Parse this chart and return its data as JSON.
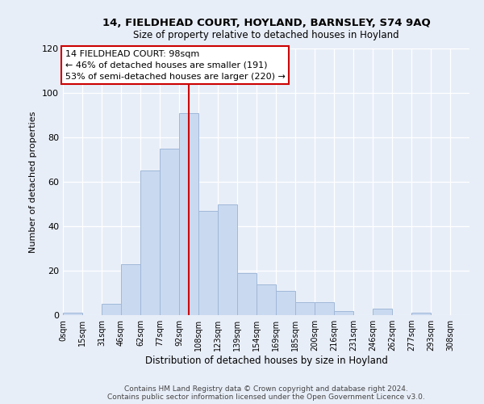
{
  "title1": "14, FIELDHEAD COURT, HOYLAND, BARNSLEY, S74 9AQ",
  "title2": "Size of property relative to detached houses in Hoyland",
  "xlabel": "Distribution of detached houses by size in Hoyland",
  "ylabel": "Number of detached properties",
  "bin_labels": [
    "0sqm",
    "15sqm",
    "31sqm",
    "46sqm",
    "62sqm",
    "77sqm",
    "92sqm",
    "108sqm",
    "123sqm",
    "139sqm",
    "154sqm",
    "169sqm",
    "185sqm",
    "200sqm",
    "216sqm",
    "231sqm",
    "246sqm",
    "262sqm",
    "277sqm",
    "293sqm",
    "308sqm"
  ],
  "bar_heights": [
    1,
    0,
    5,
    23,
    65,
    75,
    91,
    47,
    50,
    19,
    14,
    11,
    6,
    6,
    2,
    0,
    3,
    0,
    1,
    0,
    0
  ],
  "bar_color": "#c9d9f0",
  "bar_edge_color": "#a0b8d8",
  "vline_x": 6.5,
  "vline_color": "#cc0000",
  "annotation_title": "14 FIELDHEAD COURT: 98sqm",
  "annotation_line1": "← 46% of detached houses are smaller (191)",
  "annotation_line2": "53% of semi-detached houses are larger (220) →",
  "annotation_box_color": "#ffffff",
  "annotation_box_edge": "#cc0000",
  "footer1": "Contains HM Land Registry data © Crown copyright and database right 2024.",
  "footer2": "Contains public sector information licensed under the Open Government Licence v3.0.",
  "ylim": [
    0,
    120
  ],
  "yticks": [
    0,
    20,
    40,
    60,
    80,
    100,
    120
  ],
  "background_color": "#e8eef8"
}
